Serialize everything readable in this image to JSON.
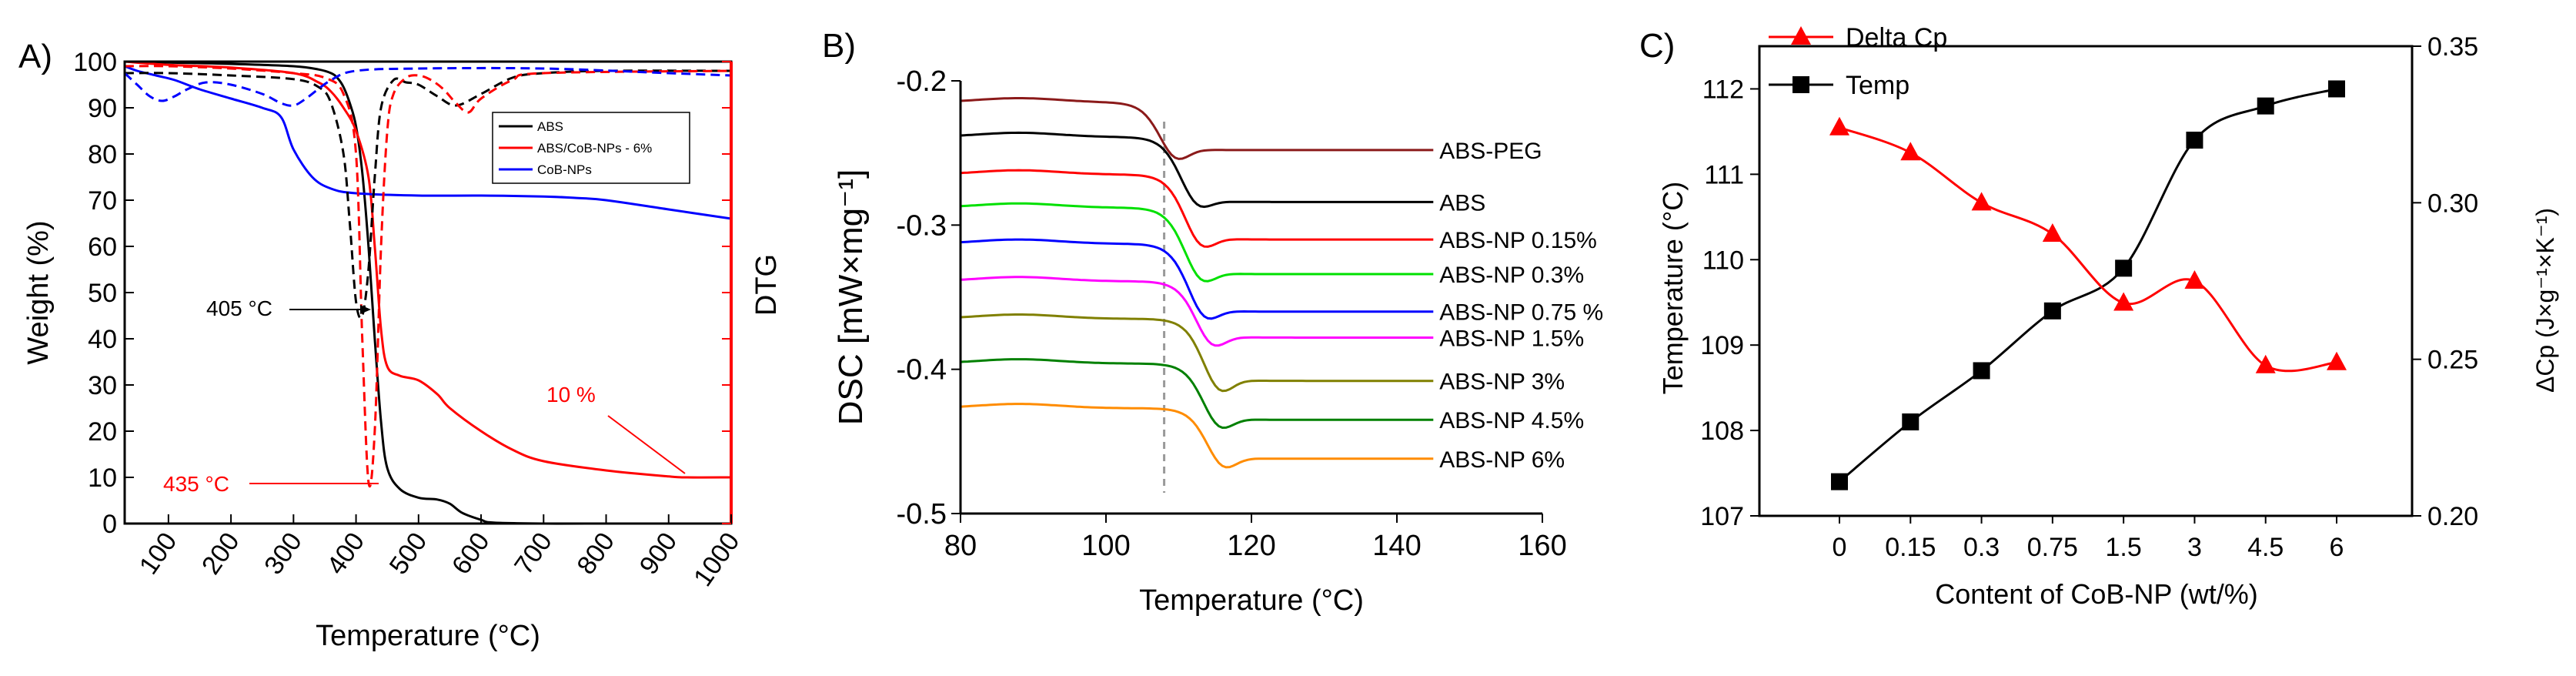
{
  "chart_data": [
    {
      "panel": "A)",
      "type": "line",
      "xlabel": "Temperature (°C)",
      "ylabel": "Weight (%)",
      "y2label": "DTG",
      "xlim": [
        30,
        1000
      ],
      "ylim": [
        0,
        100
      ],
      "xticks": [
        "100",
        "200",
        "300",
        "400",
        "500",
        "600",
        "700",
        "800",
        "900",
        "1000"
      ],
      "yticks": [
        "0",
        "10",
        "20",
        "30",
        "40",
        "50",
        "60",
        "70",
        "80",
        "90",
        "100"
      ],
      "legend": [
        "ABS",
        "ABS/CoB-NPs - 6%",
        "CoB-NPs"
      ],
      "legend_position": "center-right",
      "colors": {
        "ABS": "#000000",
        "ABS/CoB-NPs - 6%": "#ff0000",
        "CoB-NPs": "#0000ff",
        "right_axis": "#ff0000"
      },
      "annotations": [
        {
          "text": "405 °C",
          "color": "#000000"
        },
        {
          "text": "435 °C",
          "color": "#ff0000"
        },
        {
          "text": "10 %",
          "color": "#ff0000"
        }
      ],
      "series": [
        {
          "name": "ABS",
          "style": "solid",
          "color": "#000000",
          "x": [
            30,
            100,
            200,
            300,
            340,
            360,
            370,
            380,
            390,
            400,
            410,
            420,
            430,
            440,
            450,
            470,
            500,
            530,
            550,
            570,
            600,
            620,
            700,
            800,
            1000
          ],
          "y": [
            100,
            99.8,
            99.5,
            99,
            98.3,
            97.5,
            96.5,
            94.5,
            91,
            86,
            76,
            60,
            40,
            22,
            12,
            7.5,
            5.6,
            5.2,
            4.3,
            2.3,
            0.8,
            0.2,
            0,
            0,
            0
          ]
        },
        {
          "name": "ABS/CoB-NPs - 6%",
          "style": "solid",
          "color": "#ff0000",
          "x": [
            30,
            100,
            200,
            300,
            340,
            360,
            380,
            400,
            420,
            430,
            440,
            450,
            470,
            500,
            530,
            550,
            600,
            650,
            700,
            800,
            900,
            930,
            1000
          ],
          "y": [
            100,
            99.3,
            98.7,
            97.5,
            95.5,
            93.5,
            90,
            85,
            75,
            60,
            42,
            34,
            32,
            31,
            28,
            25,
            20,
            16,
            13.5,
            11.5,
            10.2,
            10,
            10
          ]
        },
        {
          "name": "CoB-NPs",
          "style": "solid",
          "color": "#0000ff",
          "x": [
            30,
            50,
            80,
            110,
            150,
            200,
            250,
            280,
            300,
            330,
            360,
            400,
            500,
            600,
            700,
            750,
            800,
            900,
            1000
          ],
          "y": [
            99,
            98,
            97,
            96,
            94,
            92,
            90,
            88,
            81,
            75,
            72.5,
            71.5,
            71,
            71,
            70.8,
            70.5,
            70,
            68,
            66
          ]
        },
        {
          "name": "ABS DTG",
          "style": "dashed",
          "color": "#000000",
          "x": [
            30,
            100,
            200,
            300,
            340,
            360,
            380,
            390,
            400,
            410,
            420,
            430,
            440,
            460,
            480,
            500,
            530,
            560,
            600,
            650,
            700,
            800,
            1000
          ],
          "y": [
            97.5,
            97.5,
            97,
            96.2,
            94.5,
            91,
            80,
            65,
            48,
            45,
            55,
            75,
            90,
            96,
            95.5,
            95,
            92.5,
            90.5,
            93,
            96.5,
            97.5,
            98,
            98
          ]
        },
        {
          "name": "ABS/CoB-NPs - 6% DTG",
          "style": "dashed",
          "color": "#ff0000",
          "x": [
            30,
            100,
            200,
            300,
            350,
            380,
            400,
            410,
            420,
            430,
            440,
            450,
            460,
            480,
            500,
            520,
            540,
            560,
            580,
            600,
            650,
            700,
            1000
          ],
          "y": [
            99,
            99,
            98.5,
            97.5,
            96.5,
            93,
            80,
            40,
            9,
            20,
            60,
            85,
            93,
            96.5,
            97,
            96,
            94,
            91,
            89,
            92,
            96,
            97.5,
            98
          ]
        },
        {
          "name": "CoB-NPs DTG",
          "style": "dashed",
          "color": "#0000ff",
          "x": [
            30,
            50,
            70,
            90,
            110,
            130,
            160,
            200,
            250,
            280,
            300,
            320,
            360,
            400,
            500,
            700,
            900,
            1000
          ],
          "y": [
            97.5,
            95,
            92.5,
            91.5,
            92.5,
            94,
            95.5,
            95,
            93,
            91,
            90.5,
            92,
            96,
            98,
            98.5,
            98.5,
            97.5,
            97
          ]
        }
      ]
    },
    {
      "panel": "B)",
      "type": "line",
      "xlabel": "Temperature (°C)",
      "ylabel": "DSC [mW×mg⁻¹]",
      "xlim": [
        80,
        160
      ],
      "ylim": [
        -0.5,
        -0.2
      ],
      "xticks": [
        "80",
        "100",
        "120",
        "140",
        "160"
      ],
      "yticks": [
        "-0.2",
        "-0.3",
        "-0.4",
        "-0.5"
      ],
      "reference_line_x": 108,
      "colors": {
        "reference_line": "#999999"
      },
      "series": [
        {
          "name": "ABS-PEG",
          "color": "#8b1a1a",
          "start": -0.215,
          "end": -0.248,
          "dip": 0.01,
          "dip_x": 109.5
        },
        {
          "name": "ABS",
          "color": "#000000",
          "start": -0.239,
          "end": -0.284,
          "dip": 0.008,
          "dip_x": 112.5
        },
        {
          "name": "ABS-NP 0.15%",
          "color": "#ff0000",
          "start": -0.265,
          "end": -0.31,
          "dip": 0.01,
          "dip_x": 113
        },
        {
          "name": "ABS-NP 0.3%",
          "color": "#00e000",
          "start": -0.288,
          "end": -0.334,
          "dip": 0.01,
          "dip_x": 113
        },
        {
          "name": "ABS-NP  0.75 %",
          "color": "#0000ff",
          "start": -0.313,
          "end": -0.36,
          "dip": 0.01,
          "dip_x": 113.5
        },
        {
          "name": "ABS-NP 1.5%",
          "color": "#ff00ff",
          "start": -0.339,
          "end": -0.378,
          "dip": 0.01,
          "dip_x": 114.5
        },
        {
          "name": "ABS-NP 3%",
          "color": "#808000",
          "start": -0.365,
          "end": -0.408,
          "dip": 0.012,
          "dip_x": 115.5
        },
        {
          "name": "ABS-NP 4.5%",
          "color": "#008000",
          "start": -0.396,
          "end": -0.435,
          "dip": 0.01,
          "dip_x": 115.5
        },
        {
          "name": "ABS-NP 6%",
          "color": "#ff8c00",
          "start": -0.427,
          "end": -0.462,
          "dip": 0.01,
          "dip_x": 116
        }
      ]
    },
    {
      "panel": "C)",
      "type": "line",
      "xlabel": "Content of CoB-NP (wt/%)",
      "ylabel": "Temperature (°C)",
      "y2label": "ΔCp (J×g⁻¹×K⁻¹)",
      "categories": [
        "0",
        "0.15",
        "0.3",
        "0.75",
        "1.5",
        "3",
        "4.5",
        "6"
      ],
      "ylim": [
        107,
        112.5
      ],
      "y2lim": [
        0.2,
        0.35
      ],
      "yticks": [
        "107",
        "108",
        "109",
        "110",
        "111",
        "112"
      ],
      "y2ticks": [
        "0.20",
        "0.25",
        "0.30",
        "0.35"
      ],
      "legend": [
        "Delta Cp",
        "Temp"
      ],
      "legend_position": "top-left",
      "series": [
        {
          "name": "Temp",
          "axis": "left",
          "color": "#000000",
          "marker": "square",
          "values": [
            107.4,
            108.1,
            108.7,
            109.4,
            109.9,
            111.4,
            111.8,
            112.0
          ]
        },
        {
          "name": "Delta Cp",
          "axis": "right",
          "color": "#ff0000",
          "marker": "triangle",
          "values": [
            0.324,
            0.316,
            0.3,
            0.29,
            0.268,
            0.275,
            0.248,
            0.249
          ]
        }
      ]
    }
  ]
}
